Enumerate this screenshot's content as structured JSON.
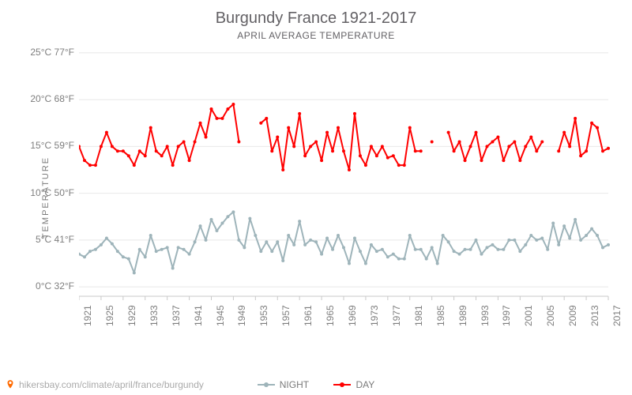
{
  "title": "Burgundy France 1921-2017",
  "subtitle": "APRIL AVERAGE TEMPERATURE",
  "y_axis_label": "TEMPERATURE",
  "source_text": "hikersbay.com/climate/april/france/burgundy",
  "legend": {
    "night_label": "NIGHT",
    "day_label": "DAY"
  },
  "colors": {
    "title_text": "#636165",
    "axis_text": "#7e7e7e",
    "grid": "#e8e8e8",
    "axis_line": "#c9c9c9",
    "night_line": "#9eb4ba",
    "day_line": "#ff0000",
    "background": "#ffffff",
    "pin": "#ff6a00"
  },
  "chart": {
    "type": "line",
    "x_years": [
      1921,
      1922,
      1923,
      1924,
      1925,
      1926,
      1927,
      1928,
      1929,
      1930,
      1931,
      1932,
      1933,
      1934,
      1935,
      1936,
      1937,
      1938,
      1939,
      1940,
      1941,
      1942,
      1943,
      1944,
      1945,
      1946,
      1947,
      1948,
      1949,
      1950,
      1951,
      1952,
      1953,
      1954,
      1955,
      1956,
      1957,
      1958,
      1959,
      1960,
      1961,
      1962,
      1963,
      1964,
      1965,
      1966,
      1967,
      1968,
      1969,
      1970,
      1971,
      1972,
      1973,
      1974,
      1975,
      1976,
      1977,
      1978,
      1979,
      1980,
      1981,
      1982,
      1983,
      1984,
      1985,
      1986,
      1987,
      1988,
      1989,
      1990,
      1991,
      1992,
      1993,
      1994,
      1995,
      1996,
      1997,
      1998,
      1999,
      2000,
      2001,
      2002,
      2003,
      2004,
      2005,
      2006,
      2007,
      2008,
      2009,
      2010,
      2011,
      2012,
      2013,
      2014,
      2015,
      2016,
      2017
    ],
    "x_tick_labels": [
      "1921",
      "1925",
      "1929",
      "1933",
      "1937",
      "1941",
      "1945",
      "1949",
      "1953",
      "1957",
      "1961",
      "1965",
      "1969",
      "1973",
      "1977",
      "1981",
      "1985",
      "1989",
      "1993",
      "1997",
      "2001",
      "2005",
      "2009",
      "2013",
      "2017"
    ],
    "x_tick_years": [
      1921,
      1925,
      1929,
      1933,
      1937,
      1941,
      1945,
      1949,
      1953,
      1957,
      1961,
      1965,
      1969,
      1973,
      1977,
      1981,
      1985,
      1989,
      1993,
      1997,
      2001,
      2005,
      2009,
      2013,
      2017
    ],
    "y_ticks_c": [
      0,
      5,
      10,
      15,
      20,
      25
    ],
    "y_ticks_f": [
      32,
      41,
      50,
      59,
      68,
      77
    ],
    "y_tick_labels": [
      "0°C 32°F",
      "5°C 41°F",
      "10°C 50°F",
      "15°C 59°F",
      "20°C 68°F",
      "25°C 77°F"
    ],
    "ylim": [
      -1,
      26
    ],
    "line_width": 2,
    "marker": "circle",
    "marker_size": 2,
    "series": {
      "night": {
        "color_key": "night_line",
        "values": [
          3.5,
          3.2,
          3.8,
          4.0,
          4.5,
          5.2,
          4.6,
          3.8,
          3.2,
          3.0,
          1.5,
          4.0,
          3.2,
          5.5,
          3.8,
          4.0,
          4.2,
          2.0,
          4.2,
          4.0,
          3.5,
          4.8,
          6.5,
          5.0,
          7.2,
          6.0,
          6.8,
          7.5,
          8.0,
          5.0,
          4.2,
          7.3,
          5.5,
          3.8,
          4.8,
          3.8,
          4.8,
          2.8,
          5.5,
          4.5,
          7.0,
          4.5,
          5.0,
          4.8,
          3.5,
          5.2,
          4.0,
          5.5,
          4.2,
          2.5,
          5.2,
          3.8,
          2.5,
          4.5,
          3.8,
          4.0,
          3.2,
          3.5,
          3.0,
          3.0,
          5.5,
          4.0,
          4.0,
          3.0,
          4.2,
          2.5,
          5.5,
          4.8,
          3.8,
          3.5,
          4.0,
          4.0,
          5.0,
          3.5,
          4.2,
          4.5,
          4.0,
          4.0,
          5.0,
          5.0,
          3.8,
          4.5,
          5.5,
          5.0,
          5.2,
          4.0,
          6.8,
          4.5,
          6.5,
          5.2,
          7.2,
          5.0,
          5.5,
          6.2,
          5.5,
          4.2,
          4.5
        ]
      },
      "day": {
        "color_key": "day_line",
        "values": [
          15.0,
          13.5,
          13.0,
          13.0,
          15.0,
          16.5,
          15.0,
          14.5,
          14.5,
          14.0,
          13.0,
          14.5,
          14.0,
          17.0,
          14.5,
          14.0,
          15.0,
          13.0,
          15.0,
          15.5,
          13.5,
          15.5,
          17.5,
          16.0,
          19.0,
          18.0,
          18.0,
          19.0,
          19.5,
          15.5,
          null,
          null,
          null,
          17.5,
          18.0,
          14.5,
          16.0,
          12.5,
          17.0,
          15.0,
          18.5,
          14.0,
          15.0,
          15.5,
          13.5,
          16.5,
          14.5,
          17.0,
          14.5,
          12.5,
          18.5,
          14.0,
          13.0,
          15.0,
          14.0,
          15.0,
          13.8,
          14.0,
          13.0,
          13.0,
          17.0,
          14.5,
          14.5,
          null,
          15.5,
          null,
          null,
          16.5,
          14.5,
          15.5,
          13.5,
          15.0,
          16.5,
          13.5,
          15.0,
          15.5,
          16.0,
          13.5,
          15.0,
          15.5,
          13.5,
          15.0,
          16.0,
          14.5,
          15.5,
          null,
          null,
          14.5,
          16.5,
          15.0,
          18.0,
          14.0,
          14.5,
          17.5,
          17.0,
          14.5,
          14.8
        ]
      }
    }
  }
}
